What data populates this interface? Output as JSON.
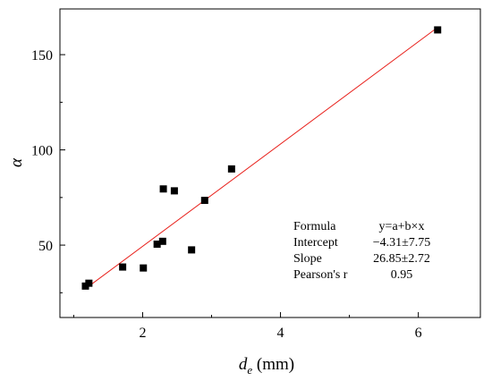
{
  "chart_data": {
    "type": "scatter",
    "title": "",
    "xlabel_main": "d",
    "xlabel_sub": "e",
    "xlabel_unit": " (mm)",
    "ylabel": "α",
    "xlim": [
      0.8,
      6.9
    ],
    "ylim": [
      12,
      174
    ],
    "x_ticks": [
      2,
      4,
      6
    ],
    "y_ticks": [
      50,
      100,
      150
    ],
    "grid": false,
    "points": [
      {
        "x": 1.17,
        "y": 28.5
      },
      {
        "x": 1.22,
        "y": 30.0
      },
      {
        "x": 1.71,
        "y": 38.5
      },
      {
        "x": 2.01,
        "y": 38.0
      },
      {
        "x": 2.21,
        "y": 50.5
      },
      {
        "x": 2.29,
        "y": 52.0
      },
      {
        "x": 2.3,
        "y": 79.5
      },
      {
        "x": 2.46,
        "y": 78.5
      },
      {
        "x": 2.71,
        "y": 47.5
      },
      {
        "x": 2.9,
        "y": 73.5
      },
      {
        "x": 3.29,
        "y": 90.0
      },
      {
        "x": 6.28,
        "y": 163.0
      }
    ],
    "fit_line": {
      "intercept": -4.31,
      "slope": 26.85,
      "x_range": [
        1.17,
        6.28
      ]
    },
    "marker_color": "#000000",
    "fit_color": "#e8201b",
    "stats_table": [
      {
        "label": "Formula",
        "value": "y=a+b×x"
      },
      {
        "label": "Intercept",
        "value": "−4.31±7.75"
      },
      {
        "label": "Slope",
        "value": "26.85±2.72"
      },
      {
        "label": "Pearson's r",
        "value": "0.95"
      }
    ]
  }
}
